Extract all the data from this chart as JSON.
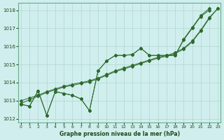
{
  "bg_color": "#d0eeee",
  "line_color": "#2d6a2d",
  "grid_color": "#b0d8cc",
  "title": "Graphe pression niveau de la mer (hPa)",
  "title_color": "#1a4a1a",
  "ylim": [
    1011.8,
    1018.4
  ],
  "xlim": [
    -0.3,
    23.3
  ],
  "yticks": [
    1012,
    1013,
    1014,
    1015,
    1016,
    1017,
    1018
  ],
  "xticks": [
    0,
    1,
    2,
    3,
    4,
    5,
    6,
    7,
    8,
    9,
    10,
    11,
    12,
    13,
    14,
    15,
    16,
    17,
    18,
    19,
    20,
    21,
    22,
    23
  ],
  "s1_x": [
    0,
    1,
    2,
    3,
    4,
    5,
    6,
    7,
    8,
    9,
    10,
    11,
    12,
    13,
    14,
    15,
    16,
    17,
    18,
    19,
    20,
    21,
    22
  ],
  "s1_y": [
    1012.8,
    1012.7,
    1013.55,
    1012.2,
    1013.5,
    1013.4,
    1013.3,
    1013.1,
    1012.45,
    1014.65,
    1015.2,
    1015.5,
    1015.5,
    1015.55,
    1015.9,
    1015.5,
    1015.5,
    1015.5,
    1015.5,
    1016.4,
    1017.05,
    1017.7,
    1018.1
  ],
  "s2_x": [
    0,
    1,
    2,
    3,
    4,
    5,
    6,
    7,
    8,
    9,
    10,
    11,
    12,
    13,
    14,
    15,
    16,
    17,
    18,
    19,
    20,
    21,
    22
  ],
  "s2_y": [
    1012.8,
    1012.7,
    1013.55,
    1012.2,
    1013.5,
    1013.4,
    1013.3,
    1013.1,
    1012.45,
    1014.65,
    1015.2,
    1015.5,
    1015.5,
    1015.55,
    1015.9,
    1015.5,
    1015.5,
    1015.5,
    1015.5,
    1016.35,
    1017.0,
    1017.65,
    1018.0
  ],
  "s3_x": [
    0,
    1,
    2,
    3,
    4,
    5,
    6,
    7,
    8,
    9,
    10,
    11,
    12,
    13,
    14,
    15,
    16,
    17,
    18,
    19,
    20,
    21,
    22,
    23
  ],
  "s3_y": [
    1012.85,
    1013.05,
    1013.25,
    1013.45,
    1013.6,
    1013.75,
    1013.85,
    1013.95,
    1014.05,
    1014.2,
    1014.4,
    1014.6,
    1014.75,
    1014.9,
    1015.05,
    1015.2,
    1015.35,
    1015.45,
    1015.6,
    1015.85,
    1016.25,
    1016.85,
    1017.55,
    1018.1
  ],
  "s4_x": [
    0,
    1,
    2,
    3,
    4,
    5,
    6,
    7,
    8,
    9,
    10,
    11,
    12,
    13,
    14,
    15,
    16,
    17,
    18,
    19,
    20,
    21,
    22,
    23
  ],
  "s4_y": [
    1013.0,
    1013.15,
    1013.3,
    1013.5,
    1013.65,
    1013.8,
    1013.9,
    1014.0,
    1014.1,
    1014.25,
    1014.45,
    1014.65,
    1014.8,
    1014.95,
    1015.1,
    1015.25,
    1015.4,
    1015.5,
    1015.65,
    1015.9,
    1016.3,
    1016.9,
    1017.6,
    1018.1
  ]
}
